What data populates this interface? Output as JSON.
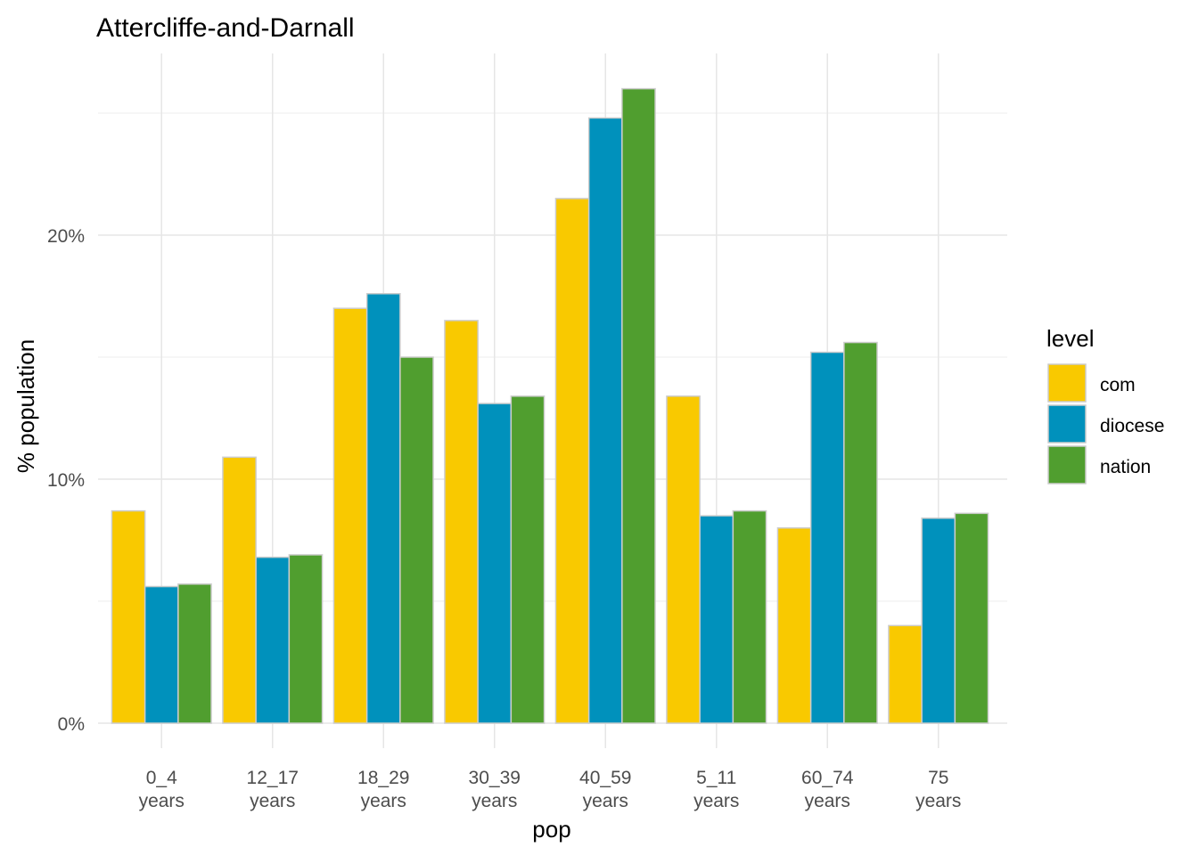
{
  "chart_data": {
    "type": "bar",
    "title": "Attercliffe-and-Darnall",
    "xlabel": "pop",
    "ylabel": "% population",
    "categories": [
      "0_4\nyears",
      "12_17\nyears",
      "18_29\nyears",
      "30_39\nyears",
      "40_59\nyears",
      "5_11\nyears",
      "60_74\nyears",
      "75\nyears"
    ],
    "series": [
      {
        "name": "com",
        "color": "#F9C900",
        "values": [
          0.087,
          0.109,
          0.17,
          0.165,
          0.215,
          0.134,
          0.08,
          0.04
        ]
      },
      {
        "name": "diocese",
        "color": "#0091BC",
        "values": [
          0.056,
          0.068,
          0.176,
          0.131,
          0.248,
          0.085,
          0.152,
          0.084
        ]
      },
      {
        "name": "nation",
        "color": "#509E2F",
        "values": [
          0.057,
          0.069,
          0.15,
          0.134,
          0.26,
          0.087,
          0.156,
          0.086
        ]
      }
    ],
    "yticks": [
      "0%",
      "10%",
      "20%"
    ],
    "ylim": [
      0,
      0.27
    ],
    "legend": {
      "title": "level",
      "position": "right"
    },
    "grid": true
  }
}
